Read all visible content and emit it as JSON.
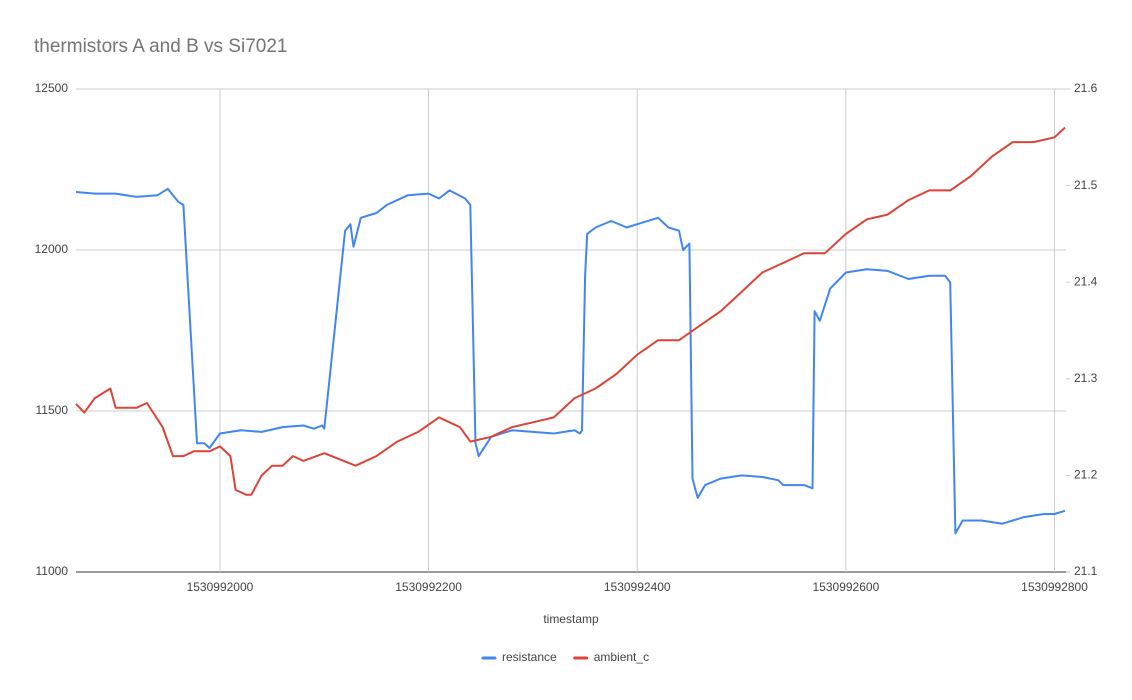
{
  "chart_data": {
    "type": "line",
    "title": "thermistors A and B vs Si7021",
    "x_label": "timestamp",
    "xlim": [
      1530991862,
      1530992811
    ],
    "xticks": [
      1530992000,
      1530992200,
      1530992400,
      1530992600,
      1530992800
    ],
    "ylim": [
      11000,
      12500
    ],
    "yticks": [
      11000,
      11500,
      12000,
      12500
    ],
    "y2lim": [
      21.1,
      21.6
    ],
    "y2ticks": [
      21.1,
      21.2,
      21.3,
      21.4,
      21.5,
      21.6
    ],
    "grid": true,
    "legend": "bottom",
    "series": [
      {
        "name": "resistance",
        "color": "#4285f4",
        "x": [
          1530991862,
          1530991880,
          1530991900,
          1530991920,
          1530991940,
          1530991950,
          1530991960,
          1530991965,
          1530991978,
          1530991985,
          1530991990,
          1530992000,
          1530992020,
          1530992040,
          1530992060,
          1530992080,
          1530992090,
          1530992098,
          1530992100,
          1530992120,
          1530992125,
          1530992128,
          1530992135,
          1530992150,
          1530992160,
          1530992180,
          1530992200,
          1530992210,
          1530992220,
          1530992235,
          1530992240,
          1530992245,
          1530992248,
          1530992260,
          1530992280,
          1530992300,
          1530992320,
          1530992340,
          1530992345,
          1530992347,
          1530992350,
          1530992352,
          1530992360,
          1530992375,
          1530992390,
          1530992400,
          1530992420,
          1530992430,
          1530992440,
          1530992444,
          1530992450,
          1530992453,
          1530992458,
          1530992465,
          1530992480,
          1530992500,
          1530992520,
          1530992535,
          1530992540,
          1530992560,
          1530992568,
          1530992570,
          1530992575,
          1530992585,
          1530992600,
          1530992620,
          1530992640,
          1530992660,
          1530992680,
          1530992695,
          1530992700,
          1530992705,
          1530992712,
          1530992730,
          1530992750,
          1530992770,
          1530992790,
          1530992800,
          1530992810
        ],
        "values": [
          12180,
          12175,
          12175,
          12165,
          12170,
          12190,
          12150,
          12140,
          11400,
          11400,
          11385,
          11430,
          11440,
          11435,
          11450,
          11455,
          11445,
          11455,
          11445,
          12060,
          12080,
          12010,
          12100,
          12115,
          12140,
          12170,
          12175,
          12160,
          12185,
          12160,
          12140,
          11400,
          11360,
          11420,
          11440,
          11435,
          11430,
          11440,
          11430,
          11440,
          11920,
          12050,
          12070,
          12090,
          12070,
          12080,
          12100,
          12070,
          12060,
          12000,
          12020,
          11290,
          11230,
          11270,
          11290,
          11300,
          11295,
          11285,
          11270,
          11270,
          11260,
          11810,
          11780,
          11880,
          11930,
          11940,
          11935,
          11910,
          11920,
          11920,
          11900,
          11120,
          11160,
          11160,
          11150,
          11170,
          11180,
          11180,
          11190
        ]
      },
      {
        "name": "ambient_c",
        "color": "#db4437",
        "axis": "y2",
        "x": [
          1530991862,
          1530991870,
          1530991880,
          1530991895,
          1530991900,
          1530991920,
          1530991930,
          1530991945,
          1530991955,
          1530991965,
          1530991975,
          1530991990,
          1530992000,
          1530992010,
          1530992015,
          1530992025,
          1530992030,
          1530992040,
          1530992050,
          1530992060,
          1530992070,
          1530992080,
          1530992100,
          1530992130,
          1530992150,
          1530992170,
          1530992190,
          1530992210,
          1530992220,
          1530992230,
          1530992240,
          1530992260,
          1530992280,
          1530992300,
          1530992320,
          1530992340,
          1530992360,
          1530992380,
          1530992400,
          1530992420,
          1530992440,
          1530992460,
          1530992480,
          1530992500,
          1530992520,
          1530992540,
          1530992560,
          1530992580,
          1530992600,
          1530992620,
          1530992640,
          1530992660,
          1530992680,
          1530992700,
          1530992720,
          1530992740,
          1530992760,
          1530992780,
          1530992800,
          1530992810
        ],
        "values": [
          21.274,
          21.265,
          21.28,
          21.29,
          21.27,
          21.27,
          21.275,
          21.25,
          21.22,
          21.22,
          21.225,
          21.225,
          21.23,
          21.22,
          21.185,
          21.18,
          21.18,
          21.2,
          21.21,
          21.21,
          21.22,
          21.215,
          21.223,
          21.21,
          21.22,
          21.235,
          21.245,
          21.26,
          21.255,
          21.25,
          21.235,
          21.24,
          21.25,
          21.255,
          21.26,
          21.28,
          21.29,
          21.305,
          21.325,
          21.34,
          21.34,
          21.355,
          21.37,
          21.39,
          21.41,
          21.42,
          21.43,
          21.43,
          21.45,
          21.465,
          21.47,
          21.485,
          21.495,
          21.495,
          21.51,
          21.53,
          21.545,
          21.545,
          21.55,
          21.56
        ]
      }
    ]
  }
}
